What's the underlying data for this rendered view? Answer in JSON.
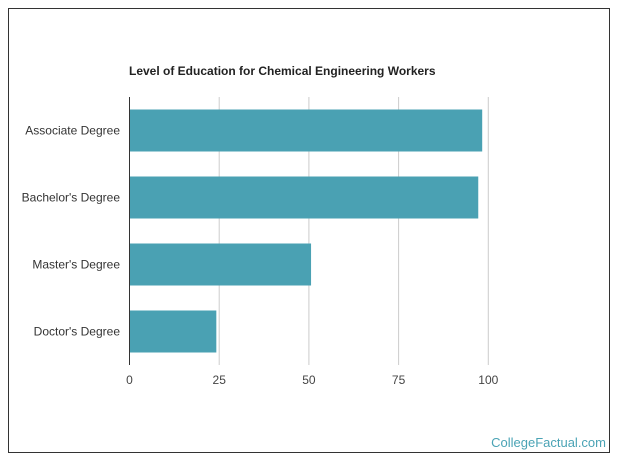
{
  "chart_data": {
    "type": "bar",
    "orientation": "horizontal",
    "title": "Level of Education for Chemical Engineering Workers",
    "categories": [
      "Associate Degree",
      "Bachelor's Degree",
      "Master's Degree",
      "Doctor's Degree"
    ],
    "values": [
      98.3,
      97.2,
      50.6,
      24.2
    ],
    "xlim": [
      0,
      100
    ],
    "xticks": [
      0,
      25,
      50,
      75,
      100
    ],
    "grid": true,
    "bar_color": "#4aa1b3",
    "xlabel": "",
    "ylabel": ""
  },
  "branding": "CollegeFactual.com"
}
